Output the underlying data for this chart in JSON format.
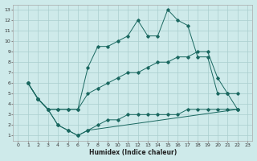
{
  "xlabel": "Humidex (Indice chaleur)",
  "bg_color": "#ceeaea",
  "grid_color": "#aacece",
  "line_color": "#1a6860",
  "xlim": [
    -0.5,
    23.5
  ],
  "ylim": [
    0.5,
    13.5
  ],
  "xticks": [
    0,
    1,
    2,
    3,
    4,
    5,
    6,
    7,
    8,
    9,
    10,
    11,
    12,
    13,
    14,
    15,
    16,
    17,
    18,
    19,
    20,
    21,
    22,
    23
  ],
  "yticks": [
    1,
    2,
    3,
    4,
    5,
    6,
    7,
    8,
    9,
    10,
    11,
    12,
    13
  ],
  "line1_x": [
    1,
    2,
    3,
    4,
    5,
    6,
    7,
    8,
    9,
    10,
    11,
    12,
    13,
    14,
    15,
    16,
    17,
    18,
    19,
    20,
    21,
    22
  ],
  "line1_y": [
    6,
    4.5,
    3.5,
    3.5,
    3.5,
    3.5,
    7.5,
    9.5,
    9.5,
    10,
    10.5,
    12,
    10.5,
    10.5,
    13,
    12,
    11.5,
    8.5,
    8.5,
    5,
    5,
    5
  ],
  "line2_x": [
    1,
    2,
    3,
    4,
    5,
    6,
    7,
    8,
    9,
    10,
    11,
    12,
    13,
    14,
    15,
    16,
    17,
    18,
    19,
    20,
    21,
    22
  ],
  "line2_y": [
    6,
    4.5,
    3.5,
    3.5,
    3.5,
    3.5,
    5,
    5.5,
    6,
    6.5,
    7,
    7,
    7.5,
    8,
    8,
    8.5,
    8.5,
    9,
    9,
    6.5,
    5,
    3.5
  ],
  "line3_x": [
    1,
    2,
    3,
    4,
    5,
    6,
    7,
    22
  ],
  "line3_y": [
    6,
    4.5,
    3.5,
    2,
    1.5,
    1,
    1.5,
    3.5
  ],
  "line4_x": [
    1,
    2,
    3,
    4,
    5,
    6,
    7,
    8,
    9,
    10,
    11,
    12,
    13,
    14,
    15,
    16,
    17,
    18,
    19,
    20,
    21,
    22
  ],
  "line4_y": [
    6,
    4.5,
    3.5,
    2,
    1.5,
    1,
    1.5,
    2,
    2.5,
    2.5,
    3,
    3,
    3,
    3,
    3,
    3,
    3.5,
    3.5,
    3.5,
    3.5,
    3.5,
    3.5
  ]
}
